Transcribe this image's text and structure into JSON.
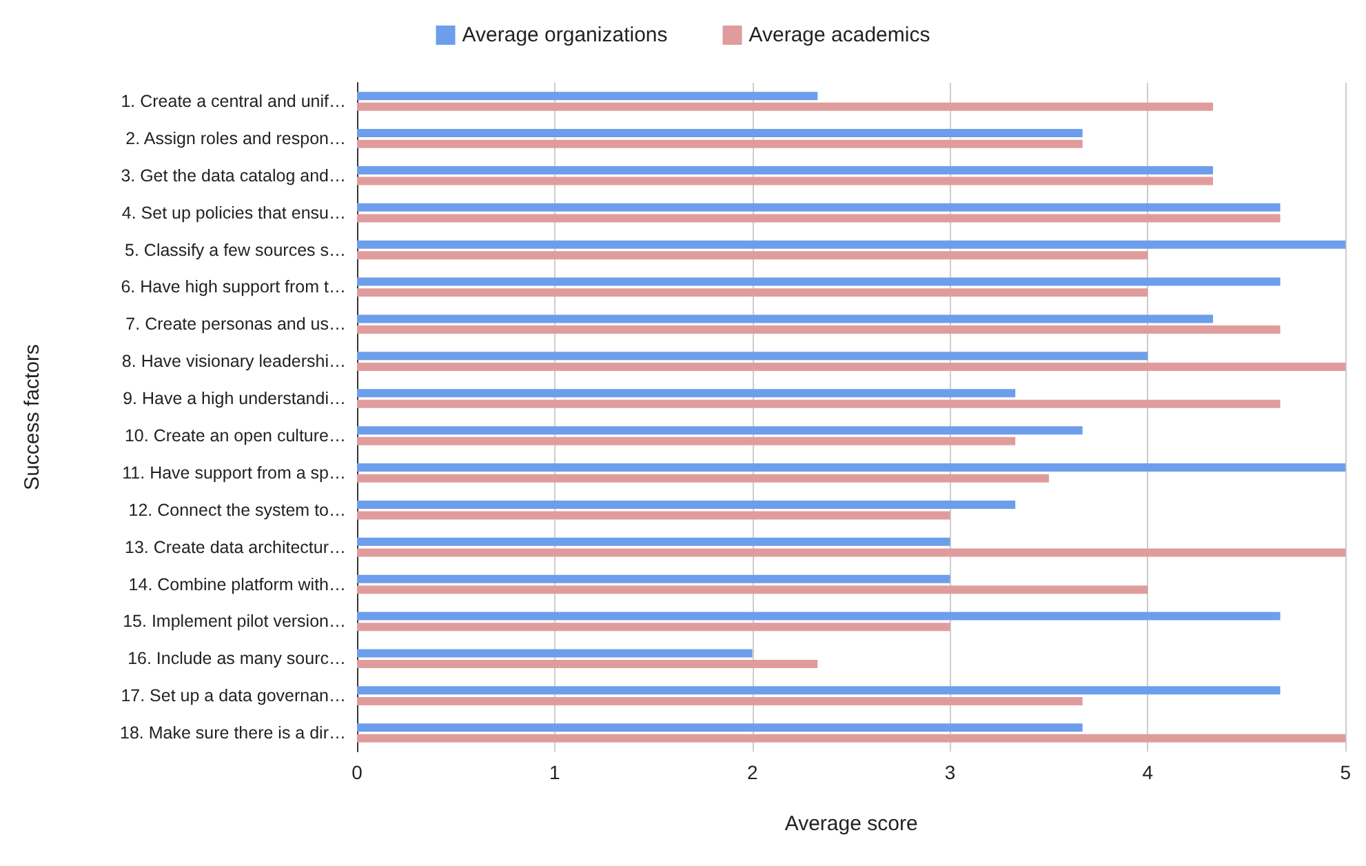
{
  "chart_data": {
    "type": "bar",
    "orientation": "horizontal",
    "xlabel": "Average score",
    "ylabel": "Success factors",
    "categories": [
      "1. Create a central and unif…",
      "2. Assign roles and respon…",
      "3. Get the data catalog and…",
      "4. Set up policies that ensu…",
      "5. Classify a few sources s…",
      "6. Have high support from t…",
      "7. Create personas and us…",
      "8. Have visionary leadershi…",
      "9. Have a high understandi…",
      "10. Create an open culture…",
      "11. Have support from a sp…",
      "12. Connect the system to…",
      "13. Create data architectur…",
      "14. Combine platform with…",
      "15. Implement pilot version…",
      "16. Include as many sourc…",
      "17. Set up a data governan…",
      "18. Make sure there is a dir…"
    ],
    "series": [
      {
        "name": "Average organizations",
        "color": "#6d9eeb",
        "values": [
          2.33,
          3.67,
          4.33,
          4.67,
          5,
          4.67,
          4.33,
          4,
          3.33,
          3.67,
          5,
          3.33,
          3,
          3,
          4.67,
          2,
          4.67,
          3.67
        ]
      },
      {
        "name": "Average academics",
        "color": "#e09c9c",
        "values": [
          4.33,
          3.67,
          4.33,
          4.67,
          4,
          4,
          4.67,
          5,
          4.67,
          3.33,
          3.5,
          3,
          5,
          4,
          3,
          2.33,
          3.67,
          5
        ]
      }
    ],
    "xlim": [
      0,
      5
    ],
    "xticks": [
      0,
      1,
      2,
      3,
      4,
      5
    ],
    "grid": "x",
    "legend": "top"
  }
}
